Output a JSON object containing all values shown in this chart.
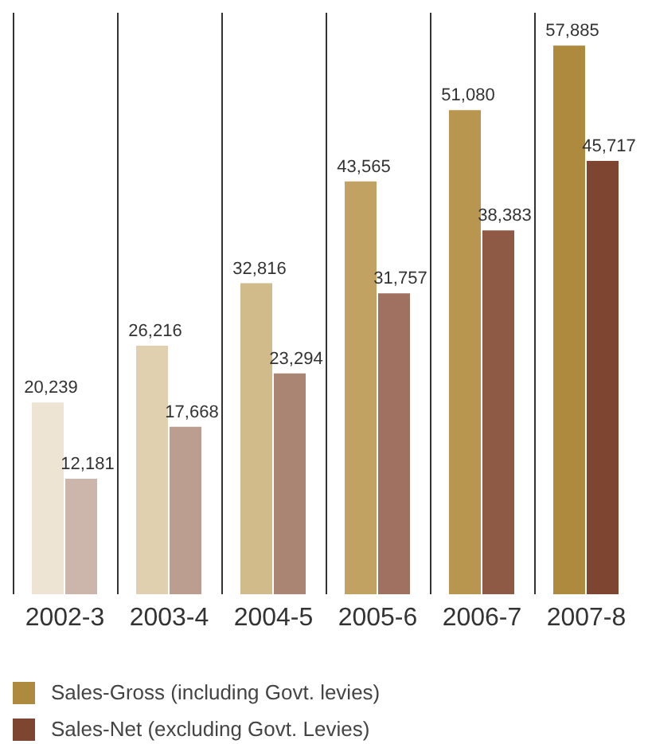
{
  "chart_data": {
    "type": "bar",
    "categories": [
      "2002-3",
      "2003-4",
      "2004-5",
      "2005-6",
      "2006-7",
      "2007-8"
    ],
    "series": [
      {
        "name": "Sales-Gross (including Govt. levies)",
        "color": "#ad8a3e",
        "colors": [
          "#ede4d4",
          "#e0d0b0",
          "#d2bb8b",
          "#c1a263",
          "#b8964f",
          "#ad8a3e"
        ],
        "values": [
          20239,
          26216,
          32816,
          43565,
          51080,
          57885
        ],
        "value_labels": [
          "20,239",
          "26,216",
          "32,816",
          "43,565",
          "51,080",
          "57,885"
        ]
      },
      {
        "name": "Sales-Net (excluding Govt. Levies)",
        "color": "#7e4530",
        "colors": [
          "#ccb5aa",
          "#bb9e90",
          "#aa8574",
          "#a07060",
          "#8f5a45",
          "#7e4530"
        ],
        "values": [
          12181,
          17668,
          23294,
          31757,
          38383,
          45717
        ],
        "value_labels": [
          "12,181",
          "17,668",
          "23,294",
          "31,757",
          "38,383",
          "45,717"
        ]
      }
    ],
    "tick_labels": "x",
    "grid": "x",
    "legend": "bottom"
  }
}
